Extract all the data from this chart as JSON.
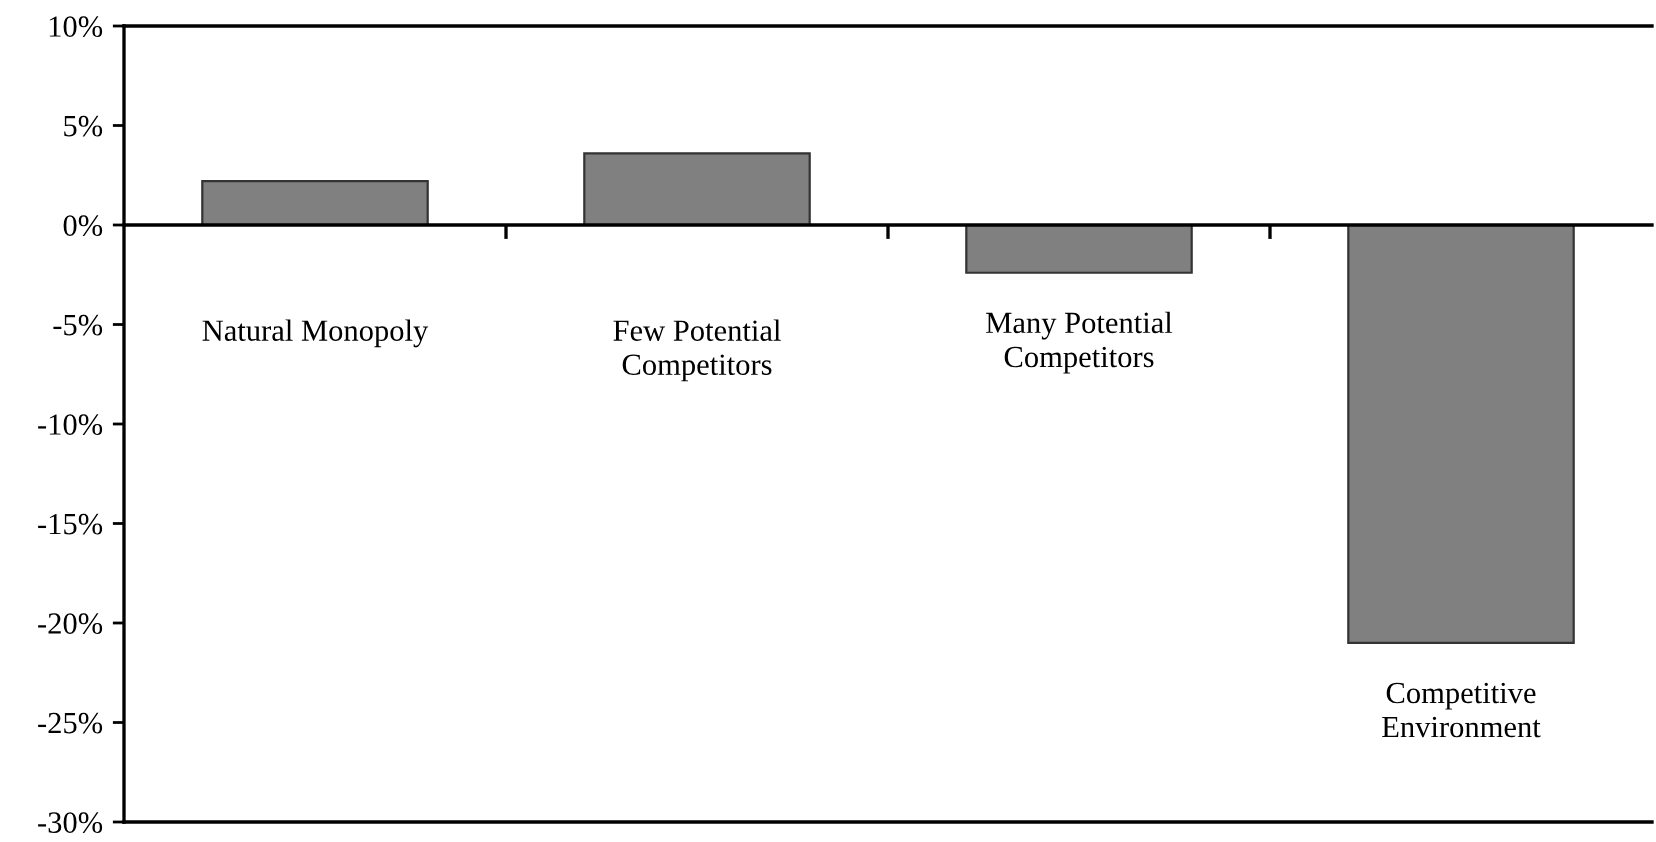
{
  "chart_data": {
    "type": "bar",
    "categories": [
      "Natural Monopoly",
      "Few Potential\nCompetitors",
      "Many Potential\nCompetitors",
      "Competitive\nEnvironment"
    ],
    "values": [
      2.2,
      3.6,
      -2.4,
      -21.0
    ],
    "color": "#808080",
    "ylim": [
      -30,
      10
    ],
    "yticks": [
      {
        "value": -30,
        "label": "-30%"
      },
      {
        "value": -25,
        "label": "-25%"
      },
      {
        "value": -20,
        "label": "-20%"
      },
      {
        "value": -15,
        "label": "-15%"
      },
      {
        "value": -10,
        "label": "-10%"
      },
      {
        "value": -5,
        "label": "-5%"
      },
      {
        "value": 0,
        "label": "0%"
      },
      {
        "value": 5,
        "label": "5%"
      },
      {
        "value": 10,
        "label": "10%"
      }
    ]
  }
}
